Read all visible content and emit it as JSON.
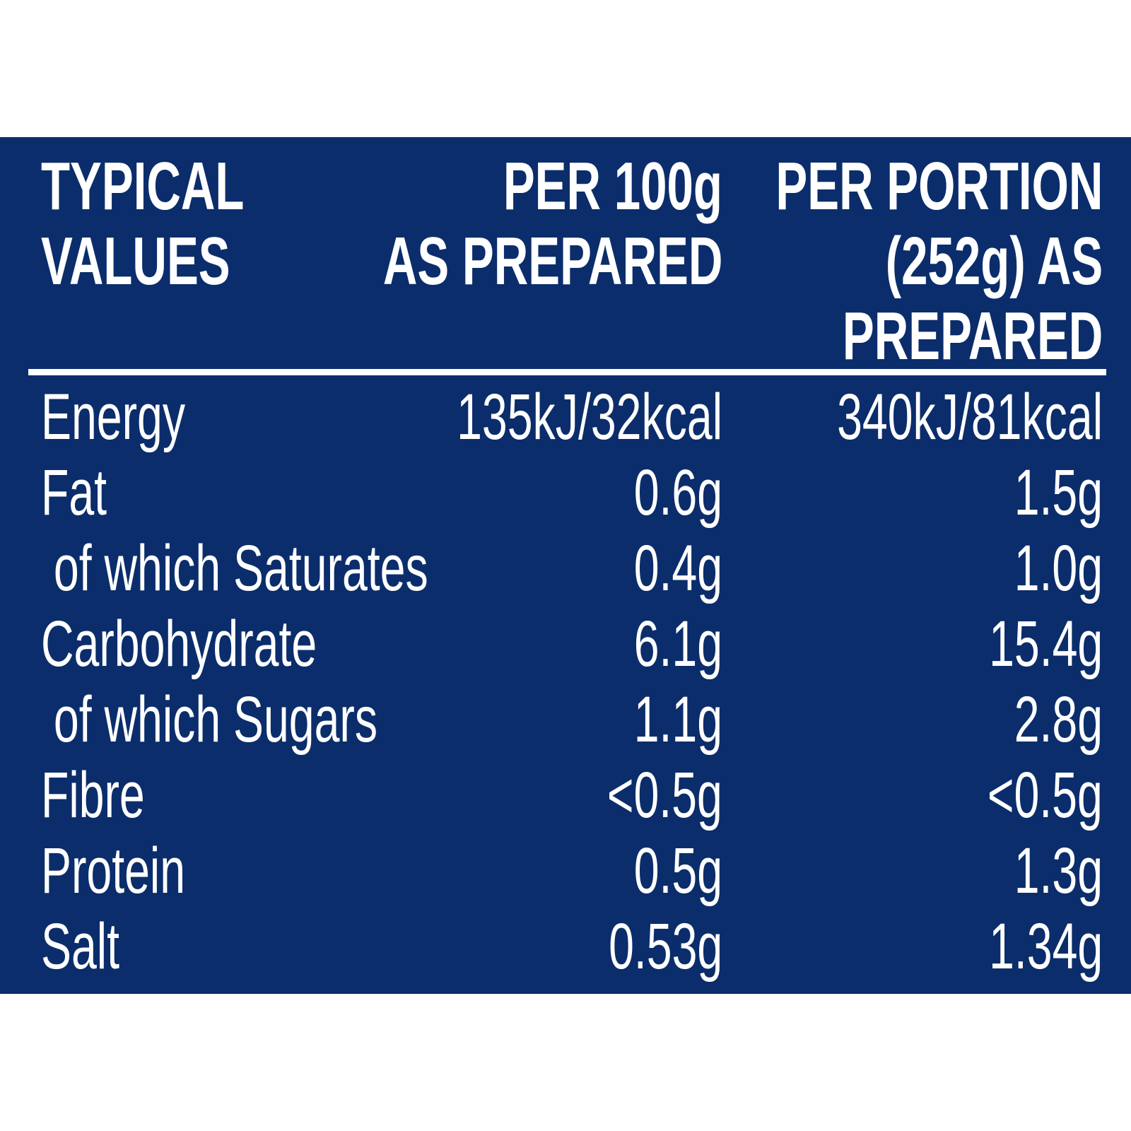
{
  "colors": {
    "panel": "#0b2d6b",
    "text": "#ffffff"
  },
  "header": {
    "col1": [
      "TYPICAL",
      "VALUES"
    ],
    "col2": [
      "PER 100g",
      "AS PREPARED"
    ],
    "col3": [
      "PER PORTION",
      "(252g) AS",
      "PREPARED"
    ]
  },
  "rows": [
    {
      "label": "Energy",
      "per100g": "135kJ/32kcal",
      "perPortion": "340kJ/81kcal"
    },
    {
      "label": "Fat",
      "per100g": "0.6g",
      "perPortion": "1.5g"
    },
    {
      "label": " of which Saturates",
      "per100g": "0.4g",
      "perPortion": "1.0g"
    },
    {
      "label": "Carbohydrate",
      "per100g": "6.1g",
      "perPortion": "15.4g"
    },
    {
      "label": " of which Sugars",
      "per100g": "1.1g",
      "perPortion": "2.8g"
    },
    {
      "label": "Fibre",
      "per100g": "<0.5g",
      "perPortion": "<0.5g"
    },
    {
      "label": "Protein",
      "per100g": "0.5g",
      "perPortion": "1.3g"
    },
    {
      "label": "Salt",
      "per100g": "0.53g",
      "perPortion": "1.34g"
    }
  ]
}
